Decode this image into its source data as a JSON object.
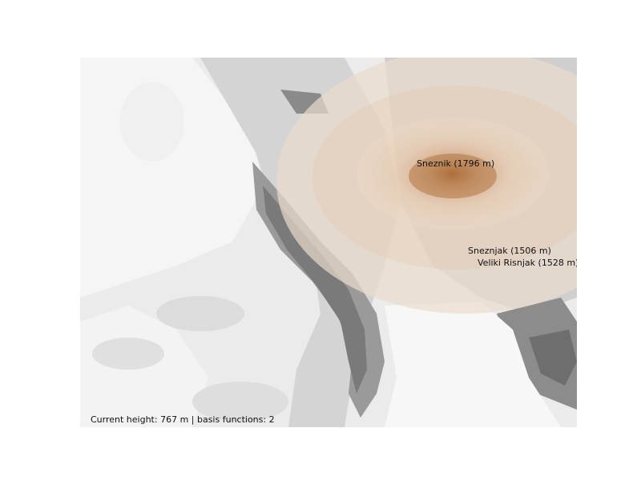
{
  "map": {
    "status_line": "Current height: 767 m | basis functions: 2",
    "peaks": [
      {
        "label": "Sneznik (1796 m)"
      },
      {
        "label": "Sneznjak (1506 m)"
      },
      {
        "label": "Veliki Risnjak (1528 m)"
      }
    ],
    "colors": {
      "terrain_light": "#f4f4f4",
      "terrain_mid": "#d9d9d9",
      "terrain_dark": "#8c8c8c",
      "terrain_darkest": "#6e6e6e",
      "overlay_outer": "#e8d2bb",
      "overlay_core": "#a86a3a"
    }
  }
}
